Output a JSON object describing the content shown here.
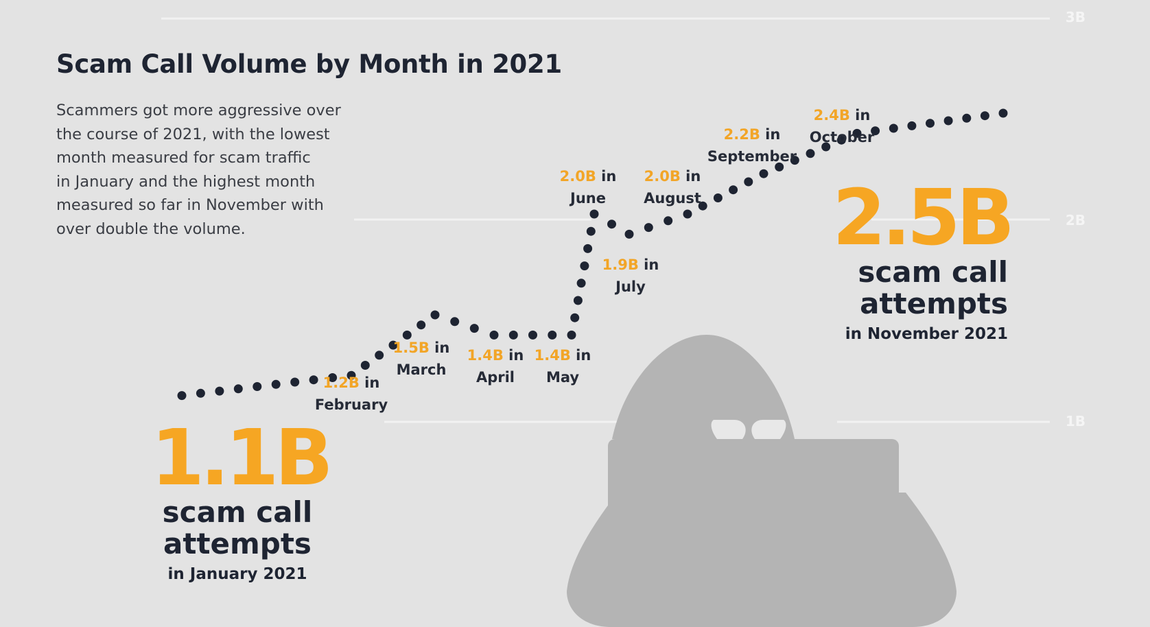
{
  "header": {
    "title": "Scam Call Volume by Month in 2021",
    "description_lines": [
      "Scammers got more aggressive over",
      "the course of 2021, with the lowest",
      "month measured for scam traffic",
      "in January and the highest month",
      "measured so far in November with",
      "over double the volume."
    ]
  },
  "highlights": {
    "low": {
      "value": "1.1B",
      "line1": "scam call",
      "line2": "attempts",
      "caption": "in January 2021"
    },
    "high": {
      "value": "2.5B",
      "line1": "scam call",
      "line2": "attempts",
      "caption": "in November 2021"
    }
  },
  "month_labels": [
    {
      "value": "1.2B",
      "suffix": " in",
      "month": "February"
    },
    {
      "value": "1.5B",
      "suffix": " in",
      "month": "March"
    },
    {
      "value": "1.4B",
      "suffix": " in",
      "month": "April"
    },
    {
      "value": "1.4B",
      "suffix": " in",
      "month": "May"
    },
    {
      "value": "2.0B",
      "suffix": " in",
      "month": "June"
    },
    {
      "value": "1.9B",
      "suffix": " in",
      "month": "July"
    },
    {
      "value": "2.0B",
      "suffix": " in",
      "month": "August"
    },
    {
      "value": "2.2B",
      "suffix": " in",
      "month": "September"
    },
    {
      "value": "2.4B",
      "suffix": " in",
      "month": "October"
    }
  ],
  "chart_data": {
    "type": "line",
    "title": "Scam Call Volume by Month in 2021",
    "x": [
      "January",
      "February",
      "March",
      "April",
      "May",
      "June",
      "July",
      "August",
      "September",
      "October",
      "November"
    ],
    "series": [
      {
        "values": [
          1.1,
          1.2,
          1.5,
          1.4,
          1.4,
          2.0,
          1.9,
          2.0,
          2.2,
          2.4,
          2.5
        ]
      }
    ],
    "y_ticks": [
      "1B",
      "2B",
      "3B"
    ],
    "ylim": [
      1,
      3
    ],
    "unit": "B",
    "line_style": "dotted",
    "grid": true
  },
  "colors": {
    "background": "#e3e3e3",
    "dots": "#1e2432",
    "accent": "#f6a623",
    "gridline": "#f2f2f2",
    "silhouette": "#b4b4b4"
  },
  "decorations": {
    "illustration": "hooded-hacker-silhouette-icon"
  }
}
